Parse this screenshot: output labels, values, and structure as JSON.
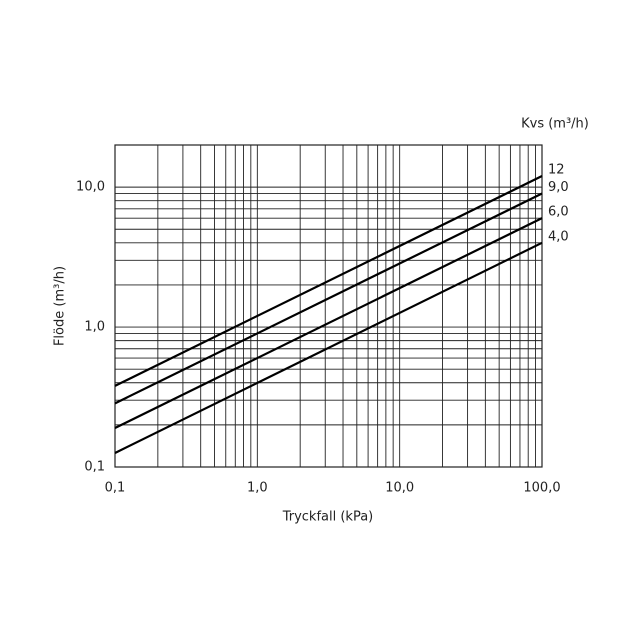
{
  "chart_data": {
    "type": "line",
    "x_label": "Tryckfall (kPa)",
    "y_label": "Flöde (m³/h)",
    "legend_title": "Kvs (m³/h)",
    "log_x": true,
    "log_y": true,
    "grid": true,
    "xlim": [
      0.1,
      100
    ],
    "ylim": [
      0.1,
      20
    ],
    "xticks": [
      {
        "value": 0.1,
        "label": "0,1"
      },
      {
        "value": 1,
        "label": "1,0"
      },
      {
        "value": 10,
        "label": "10,0"
      },
      {
        "value": 100,
        "label": "100,0"
      }
    ],
    "yticks": [
      {
        "value": 0.1,
        "label": "0,1"
      },
      {
        "value": 1,
        "label": "1,0"
      },
      {
        "value": 10,
        "label": "10,0"
      }
    ],
    "xticks_minor": [
      0.2,
      0.3,
      0.4,
      0.5,
      0.6,
      0.7,
      0.8,
      0.9,
      2,
      3,
      4,
      5,
      6,
      7,
      8,
      9,
      20,
      30,
      40,
      50,
      60,
      70,
      80,
      90
    ],
    "yticks_minor": [
      0.2,
      0.3,
      0.4,
      0.5,
      0.6,
      0.7,
      0.8,
      0.9,
      2,
      3,
      4,
      5,
      6,
      7,
      8,
      9,
      20
    ],
    "x": [
      0.1,
      100
    ],
    "series": [
      {
        "name": "12",
        "color": "#000000",
        "values": [
          0.38,
          12
        ]
      },
      {
        "name": "9,0",
        "color": "#000000",
        "values": [
          0.285,
          9
        ]
      },
      {
        "name": "6,0",
        "color": "#000000",
        "values": [
          0.19,
          6
        ]
      },
      {
        "name": "4,0",
        "color": "#000000",
        "values": [
          0.126,
          4
        ]
      }
    ]
  }
}
